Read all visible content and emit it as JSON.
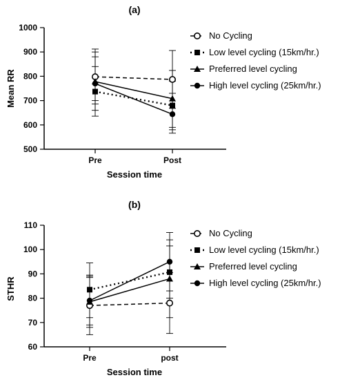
{
  "chart_data": [
    {
      "type": "line",
      "title": "(a)",
      "xlabel": "Session time",
      "ylabel": "Mean RR",
      "categories": [
        "Pre",
        "Post"
      ],
      "ylim": [
        500,
        1000
      ],
      "yticks": [
        "500",
        "600",
        "700",
        "800",
        "900",
        "1000"
      ],
      "legend_position": "right",
      "series": [
        {
          "name": "No Cycling",
          "values": [
            798,
            787
          ],
          "error": [
            [
              700,
              912
            ],
            [
              668,
              906
            ]
          ],
          "marker": "open-circle",
          "line": "dashed"
        },
        {
          "name": "Low level cycling (15km/hr.)",
          "values": [
            737,
            680
          ],
          "error": [
            [
              636,
              840
            ],
            [
              580,
              780
            ]
          ],
          "marker": "square",
          "line": "dotted"
        },
        {
          "name": "Preferred level cycling",
          "values": [
            778,
            708
          ],
          "error": [
            [
              686,
              880
            ],
            [
              590,
              824
            ]
          ],
          "marker": "triangle",
          "line": "solid"
        },
        {
          "name": "High level cycling (25km/hr.)",
          "values": [
            770,
            644
          ],
          "error": [
            [
              660,
              900
            ],
            [
              566,
              730
            ]
          ],
          "marker": "filled-circle",
          "line": "solid"
        }
      ]
    },
    {
      "type": "line",
      "title": "(b)",
      "xlabel": "Session time",
      "ylabel": "STHR",
      "categories": [
        "Pre",
        "post"
      ],
      "ylim": [
        60,
        110
      ],
      "yticks": [
        "60",
        "70",
        "80",
        "90",
        "100",
        "110"
      ],
      "legend_position": "right",
      "series": [
        {
          "name": "No Cycling",
          "values": [
            77,
            78
          ],
          "error": [
            [
              65,
              89
            ],
            [
              65.5,
              90.5
            ]
          ],
          "marker": "open-circle",
          "line": "dashed"
        },
        {
          "name": "Low level cycling (15km/hr.)",
          "values": [
            83.5,
            90.7
          ],
          "error": [
            [
              72,
              94.5
            ],
            [
              80,
              101.5
            ]
          ],
          "marker": "square",
          "line": "dotted"
        },
        {
          "name": "Preferred level cycling",
          "values": [
            78.5,
            88
          ],
          "error": [
            [
              68,
              89.5
            ],
            [
              72,
              104
            ]
          ],
          "marker": "triangle",
          "line": "solid"
        },
        {
          "name": "High level cycling (25km/hr.)",
          "values": [
            79,
            95
          ],
          "error": [
            [
              69,
              88.5
            ],
            [
              83,
              107
            ]
          ],
          "marker": "filled-circle",
          "line": "solid"
        }
      ]
    }
  ]
}
